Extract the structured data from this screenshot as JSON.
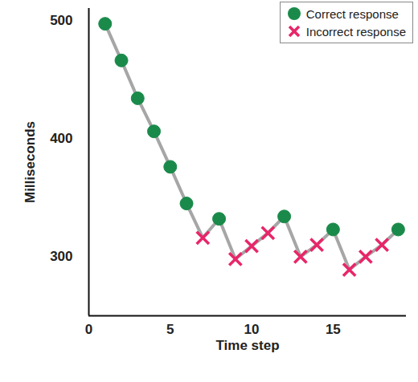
{
  "chart_data": {
    "type": "line",
    "color": "#a6a6a6",
    "x_label": "Time step",
    "y_label": "Milliseconds",
    "x": [
      1,
      2,
      3,
      4,
      5,
      6,
      7,
      8,
      9,
      10,
      11,
      12,
      13,
      14,
      15,
      16,
      17,
      18,
      19
    ],
    "series": [
      {
        "name": "Correct response",
        "type": "scatter",
        "color": "#1a8a4a",
        "marker": "circle",
        "values": [
          497,
          466,
          434,
          406,
          376,
          345,
          null,
          332,
          null,
          null,
          null,
          334,
          null,
          null,
          323,
          null,
          null,
          null,
          323
        ]
      },
      {
        "name": "Incorrect response",
        "type": "scatter",
        "color": "#e8266a",
        "marker": "x",
        "values": [
          null,
          null,
          null,
          null,
          null,
          null,
          316,
          null,
          298,
          309,
          320,
          null,
          300,
          310,
          null,
          289,
          300,
          310,
          null
        ]
      }
    ],
    "xlim": [
      0,
      19.5
    ],
    "xticks": [
      0,
      5,
      10,
      15
    ],
    "ylim": [
      250,
      510
    ],
    "yticks": [
      300,
      400,
      500
    ],
    "grid": false,
    "legend": "top-right"
  }
}
